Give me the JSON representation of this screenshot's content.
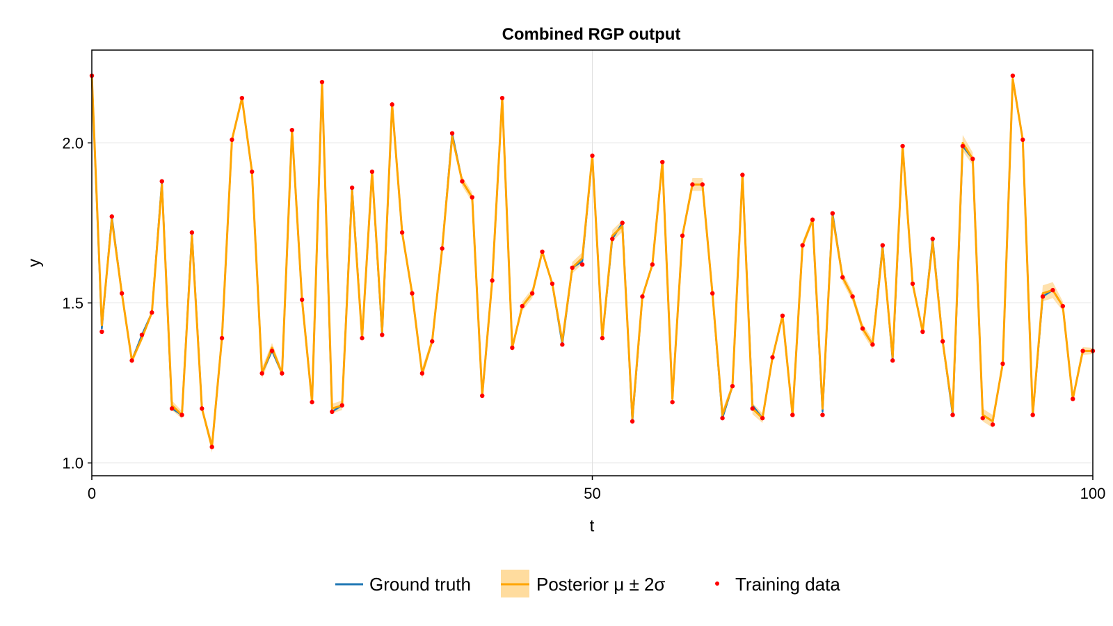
{
  "chart_data": {
    "type": "line",
    "title": "Combined RGP output",
    "xlabel": "t",
    "ylabel": "y",
    "xlim": [
      0,
      100
    ],
    "ylim": [
      0.96,
      2.29
    ],
    "xticks": [
      0,
      50,
      100
    ],
    "xtick_labels": [
      "0",
      "50",
      "100"
    ],
    "yticks": [
      1.0,
      1.5,
      2.0
    ],
    "ytick_labels": [
      "1.0",
      "1.5",
      "2.0"
    ],
    "grid": true,
    "legend_position": "bottom",
    "legend": [
      "Ground truth",
      "Posterior μ ± 2σ",
      "Training data"
    ],
    "colors": {
      "ground_truth": "#1f77b4",
      "posterior": "#ffa500",
      "band": "#ffdc9e",
      "training": "#ff0000"
    },
    "x": [
      0,
      1,
      2,
      3,
      4,
      5,
      6,
      7,
      8,
      9,
      10,
      11,
      12,
      13,
      14,
      15,
      16,
      17,
      18,
      19,
      20,
      21,
      22,
      23,
      24,
      25,
      26,
      27,
      28,
      29,
      30,
      31,
      32,
      33,
      34,
      35,
      36,
      37,
      38,
      39,
      40,
      41,
      42,
      43,
      44,
      45,
      46,
      47,
      48,
      49,
      50,
      51,
      52,
      53,
      54,
      55,
      56,
      57,
      58,
      59,
      60,
      61,
      62,
      63,
      64,
      65,
      66,
      67,
      68,
      69,
      70,
      71,
      72,
      73,
      74,
      75,
      76,
      77,
      78,
      79,
      80,
      81,
      82,
      83,
      84,
      85,
      86,
      87,
      88,
      89,
      90,
      91,
      92,
      93,
      94,
      95,
      96,
      97,
      98,
      99,
      100
    ],
    "series": [
      {
        "name": "Ground truth",
        "values": [
          2.21,
          1.42,
          1.77,
          1.53,
          1.32,
          1.4,
          1.47,
          1.88,
          1.17,
          1.15,
          1.72,
          1.17,
          1.05,
          1.39,
          2.01,
          2.14,
          1.91,
          1.28,
          1.35,
          1.28,
          2.04,
          1.51,
          1.19,
          2.19,
          1.16,
          1.18,
          1.86,
          1.39,
          1.91,
          1.4,
          2.12,
          1.72,
          1.53,
          1.28,
          1.38,
          1.67,
          2.03,
          1.88,
          1.83,
          1.21,
          1.57,
          2.14,
          1.36,
          1.49,
          1.53,
          1.66,
          1.56,
          1.37,
          1.61,
          1.63,
          1.96,
          1.39,
          1.7,
          1.75,
          1.13,
          1.52,
          1.62,
          1.94,
          1.2,
          1.71,
          1.87,
          1.87,
          1.53,
          1.14,
          1.24,
          1.9,
          1.18,
          1.14,
          1.33,
          1.46,
          1.15,
          1.68,
          1.76,
          1.16,
          1.78,
          1.58,
          1.52,
          1.42,
          1.37,
          1.68,
          1.32,
          1.99,
          1.56,
          1.41,
          1.7,
          1.38,
          1.15,
          1.99,
          1.95,
          1.15,
          1.13,
          1.31,
          2.2,
          2.01,
          1.15,
          1.52,
          1.54,
          1.49,
          1.2,
          1.35,
          1.35
        ]
      },
      {
        "name": "Posterior μ ± 2σ",
        "values": [
          2.21,
          1.43,
          1.76,
          1.53,
          1.32,
          1.39,
          1.47,
          1.87,
          1.18,
          1.15,
          1.71,
          1.17,
          1.05,
          1.39,
          2.01,
          2.14,
          1.91,
          1.28,
          1.36,
          1.28,
          2.04,
          1.51,
          1.19,
          2.19,
          1.17,
          1.18,
          1.85,
          1.39,
          1.91,
          1.41,
          2.12,
          1.72,
          1.53,
          1.28,
          1.38,
          1.67,
          2.02,
          1.88,
          1.83,
          1.21,
          1.57,
          2.14,
          1.36,
          1.49,
          1.53,
          1.66,
          1.56,
          1.38,
          1.61,
          1.64,
          1.96,
          1.39,
          1.71,
          1.74,
          1.14,
          1.52,
          1.62,
          1.94,
          1.2,
          1.71,
          1.87,
          1.87,
          1.53,
          1.15,
          1.24,
          1.9,
          1.17,
          1.14,
          1.33,
          1.46,
          1.15,
          1.68,
          1.76,
          1.17,
          1.77,
          1.58,
          1.52,
          1.42,
          1.37,
          1.67,
          1.33,
          1.99,
          1.56,
          1.41,
          1.69,
          1.38,
          1.16,
          2.0,
          1.95,
          1.15,
          1.13,
          1.31,
          2.2,
          2.01,
          1.15,
          1.53,
          1.54,
          1.49,
          1.2,
          1.35,
          1.35
        ]
      },
      {
        "name": "Training data",
        "values": [
          2.21,
          1.41,
          1.77,
          1.53,
          1.32,
          1.4,
          1.47,
          1.88,
          1.17,
          1.15,
          1.72,
          1.17,
          1.05,
          1.39,
          2.01,
          2.14,
          1.91,
          1.28,
          1.35,
          1.28,
          2.04,
          1.51,
          1.19,
          2.19,
          1.16,
          1.18,
          1.86,
          1.39,
          1.91,
          1.4,
          2.12,
          1.72,
          1.53,
          1.28,
          1.38,
          1.67,
          2.03,
          1.88,
          1.83,
          1.21,
          1.57,
          2.14,
          1.36,
          1.49,
          1.53,
          1.66,
          1.56,
          1.37,
          1.61,
          1.62,
          1.96,
          1.39,
          1.7,
          1.75,
          1.13,
          1.52,
          1.62,
          1.94,
          1.19,
          1.71,
          1.87,
          1.87,
          1.53,
          1.14,
          1.24,
          1.9,
          1.17,
          1.14,
          1.33,
          1.46,
          1.15,
          1.68,
          1.76,
          1.15,
          1.78,
          1.58,
          1.52,
          1.42,
          1.37,
          1.68,
          1.32,
          1.99,
          1.56,
          1.41,
          1.7,
          1.38,
          1.15,
          1.99,
          1.95,
          1.14,
          1.12,
          1.31,
          2.21,
          2.01,
          1.15,
          1.52,
          1.54,
          1.49,
          1.2,
          1.35,
          1.35
        ]
      }
    ],
    "band_halfwidth": [
      0.004,
      0.01,
      0.008,
      0.008,
      0.012,
      0.01,
      0.008,
      0.01,
      0.015,
      0.012,
      0.008,
      0.01,
      0.018,
      0.01,
      0.008,
      0.008,
      0.01,
      0.018,
      0.015,
      0.012,
      0.008,
      0.01,
      0.01,
      0.008,
      0.015,
      0.015,
      0.01,
      0.01,
      0.01,
      0.01,
      0.008,
      0.01,
      0.01,
      0.018,
      0.012,
      0.01,
      0.01,
      0.015,
      0.015,
      0.01,
      0.01,
      0.008,
      0.012,
      0.015,
      0.015,
      0.01,
      0.01,
      0.012,
      0.018,
      0.018,
      0.012,
      0.01,
      0.018,
      0.018,
      0.01,
      0.01,
      0.01,
      0.012,
      0.01,
      0.012,
      0.02,
      0.02,
      0.01,
      0.015,
      0.012,
      0.01,
      0.018,
      0.015,
      0.01,
      0.012,
      0.01,
      0.012,
      0.012,
      0.01,
      0.012,
      0.015,
      0.015,
      0.015,
      0.015,
      0.012,
      0.01,
      0.012,
      0.012,
      0.012,
      0.012,
      0.012,
      0.012,
      0.025,
      0.02,
      0.02,
      0.02,
      0.012,
      0.01,
      0.012,
      0.01,
      0.025,
      0.025,
      0.015,
      0.01,
      0.012,
      0.01
    ]
  }
}
